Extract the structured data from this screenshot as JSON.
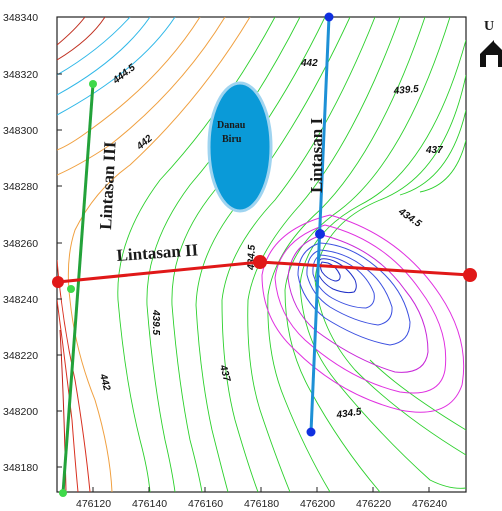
{
  "map": {
    "y_ticks": [
      "348340",
      "348320",
      "348300",
      "348280",
      "348260",
      "348240",
      "348220",
      "348200",
      "348180"
    ],
    "x_ticks": [
      "476120",
      "476140",
      "476160",
      "476180",
      "476200",
      "476220",
      "476240"
    ],
    "contour_labels": [
      "444.5",
      "442",
      "442",
      "442",
      "439.5",
      "437",
      "434.5",
      "434.5",
      "434.5",
      "439.5",
      "437",
      "442"
    ],
    "lines": {
      "line1": "Lintasan I",
      "line2": "Lintasan II",
      "line3": "Lintasan III"
    },
    "lake": {
      "line1": "Danau",
      "line2": "Biru"
    },
    "north_label": "U",
    "colors": {
      "line1": "#1e90d6",
      "line2": "#e01818",
      "line3": "#23a23a",
      "lake_fill": "#0a9ad8",
      "lake_stroke": "#9fd4f0"
    }
  }
}
